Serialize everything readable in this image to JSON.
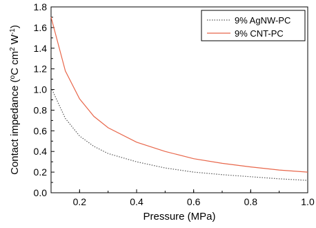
{
  "chart_data": {
    "type": "line",
    "xlabel": "Pressure (MPa)",
    "ylabel_parts": [
      "Contact impedance (",
      "o",
      "C cm",
      "2",
      " W",
      "-1",
      ")"
    ],
    "xlim": [
      0.1,
      1.0
    ],
    "ylim": [
      0.0,
      1.8
    ],
    "x_ticks": [
      0.2,
      0.4,
      0.6,
      0.8,
      1.0
    ],
    "x_tick_labels": [
      "0.2",
      "0.4",
      "0.6",
      "0.8",
      "1.0"
    ],
    "y_ticks": [
      0.0,
      0.2,
      0.4,
      0.6,
      0.8,
      1.0,
      1.2,
      1.4,
      1.6,
      1.8
    ],
    "y_tick_labels": [
      "0.0",
      "0.2",
      "0.4",
      "0.6",
      "0.8",
      "1.0",
      "1.2",
      "1.4",
      "1.6",
      "1.8"
    ],
    "grid": false,
    "legend_position": "top-right",
    "series": [
      {
        "name": "9% AgNW-PC",
        "color": "#555555",
        "style": "dotted",
        "x": [
          0.1,
          0.15,
          0.2,
          0.25,
          0.3,
          0.4,
          0.5,
          0.6,
          0.7,
          0.8,
          0.9,
          1.0
        ],
        "y": [
          1.02,
          0.72,
          0.55,
          0.45,
          0.38,
          0.3,
          0.24,
          0.2,
          0.175,
          0.155,
          0.135,
          0.12
        ]
      },
      {
        "name": "9% CNT-PC",
        "color": "#e8664a",
        "style": "solid",
        "x": [
          0.1,
          0.15,
          0.2,
          0.25,
          0.3,
          0.4,
          0.5,
          0.6,
          0.7,
          0.8,
          0.9,
          1.0
        ],
        "y": [
          1.7,
          1.18,
          0.91,
          0.74,
          0.63,
          0.49,
          0.4,
          0.33,
          0.285,
          0.25,
          0.22,
          0.2
        ]
      }
    ]
  }
}
